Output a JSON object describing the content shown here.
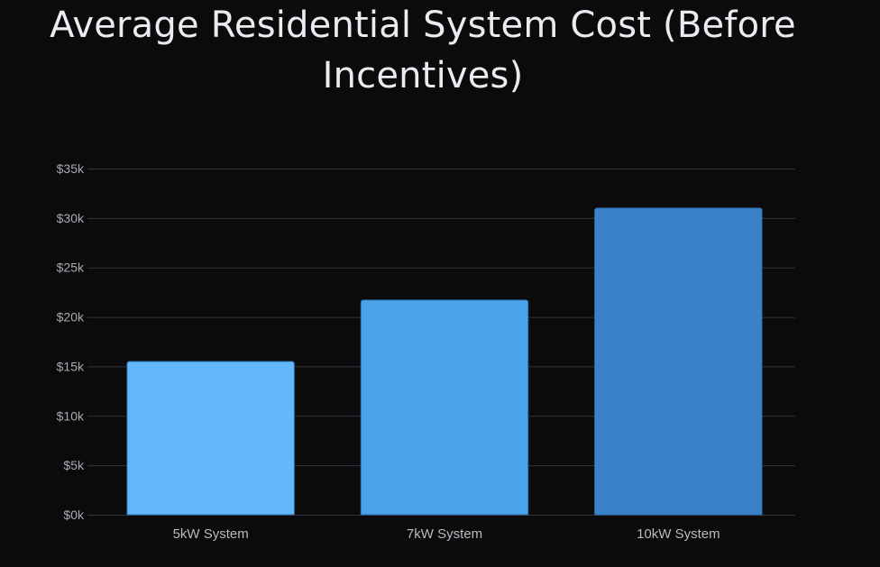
{
  "chart_data": {
    "type": "bar",
    "title": "Average Residential System Cost (Before Incentives)",
    "title_lines": [
      "Average Residential System Cost (Before",
      "Incentives)"
    ],
    "categories": [
      "5kW System",
      "7kW System",
      "10kW System"
    ],
    "values": [
      15500,
      21700,
      31000
    ],
    "bar_colors": [
      "#63b8fb",
      "#4aa4ea",
      "#3a82c8"
    ],
    "ylim": [
      0,
      35000
    ],
    "yticks": [
      0,
      5000,
      10000,
      15000,
      20000,
      25000,
      30000,
      35000
    ],
    "ytick_labels": [
      "$0k",
      "$5k",
      "$10k",
      "$15k",
      "$20k",
      "$25k",
      "$30k",
      "$35k"
    ],
    "grid": true,
    "xlabel": "",
    "ylabel": ""
  }
}
